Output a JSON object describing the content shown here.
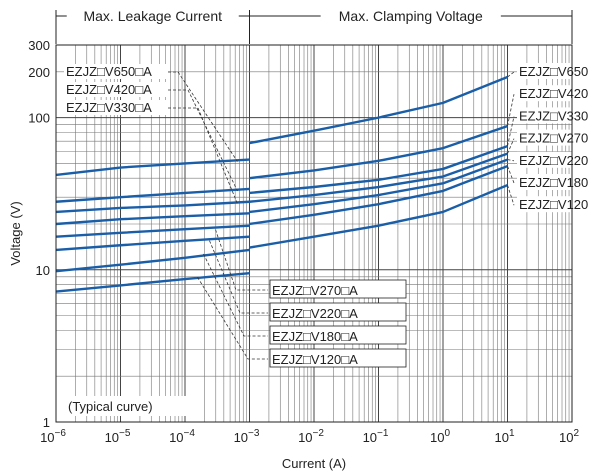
{
  "chart_data": {
    "type": "line",
    "title": "",
    "xlabel": "Current (A)",
    "ylabel": "Voltage (V)",
    "x_scale": "log",
    "y_scale": "log",
    "xlim": [
      1e-06,
      100
    ],
    "ylim": [
      1,
      300
    ],
    "grid": true,
    "x_tick_labels": [
      {
        "base": "10",
        "exp": "−6"
      },
      {
        "base": "10",
        "exp": "−5"
      },
      {
        "base": "10",
        "exp": "−4"
      },
      {
        "base": "10",
        "exp": "−3"
      },
      {
        "base": "10",
        "exp": "−2"
      },
      {
        "base": "10",
        "exp": "−1"
      },
      {
        "base": "10",
        "exp": "0"
      },
      {
        "base": "10",
        "exp": "1"
      },
      {
        "base": "10",
        "exp": "2"
      }
    ],
    "y_tick_labels": [
      "1",
      "10",
      "100",
      "200",
      "300"
    ],
    "regions": [
      {
        "label": "Max. Leakage Current",
        "from": 1e-06,
        "to": 0.001
      },
      {
        "label": "Max. Clamping Voltage",
        "from": 0.001,
        "to": 100
      }
    ],
    "annotation": "(Typical curve)",
    "series_line_color": "#1a5ea8",
    "series": [
      {
        "name": "EZJZ□V650□A",
        "leakage": {
          "x": [
            1e-06,
            1e-05,
            0.0001,
            0.001
          ],
          "y": [
            42,
            47,
            50,
            53
          ]
        },
        "clamping": {
          "x": [
            0.001,
            0.01,
            0.1,
            1,
            10
          ],
          "y": [
            68,
            82,
            100,
            125,
            185
          ]
        }
      },
      {
        "name": "EZJZ□V420□A",
        "leakage": {
          "x": [
            1e-06,
            1e-05,
            0.0001,
            0.001
          ],
          "y": [
            28,
            30,
            32,
            34
          ]
        },
        "clamping": {
          "x": [
            0.001,
            0.01,
            0.1,
            1,
            10
          ],
          "y": [
            40,
            45,
            52,
            63,
            88
          ]
        }
      },
      {
        "name": "EZJZ□V330□A",
        "leakage": {
          "x": [
            1e-06,
            1e-05,
            0.0001,
            0.001
          ],
          "y": [
            24,
            25.5,
            26.5,
            28
          ]
        },
        "clamping": {
          "x": [
            0.001,
            0.01,
            0.1,
            1,
            10
          ],
          "y": [
            32,
            35,
            39,
            46,
            65
          ]
        }
      },
      {
        "name": "EZJZ□V270□A",
        "leakage": {
          "x": [
            1e-06,
            1e-05,
            0.0001,
            0.001
          ],
          "y": [
            20,
            21.5,
            22.5,
            23.5
          ]
        },
        "clamping": {
          "x": [
            0.001,
            0.01,
            0.1,
            1,
            10
          ],
          "y": [
            28,
            31,
            35,
            41,
            58
          ]
        }
      },
      {
        "name": "EZJZ□V220□A",
        "leakage": {
          "x": [
            1e-06,
            1e-05,
            0.0001,
            0.001
          ],
          "y": [
            16.5,
            17.5,
            18.5,
            19.5
          ]
        },
        "clamping": {
          "x": [
            0.001,
            0.01,
            0.1,
            1,
            10
          ],
          "y": [
            24,
            27,
            31,
            37,
            53
          ]
        }
      },
      {
        "name": "EZJZ□V180□A",
        "leakage": {
          "x": [
            1e-06,
            1e-05,
            0.0001,
            0.001
          ],
          "y": [
            13.5,
            14.5,
            15.5,
            16.5
          ]
        },
        "clamping": {
          "x": [
            0.001,
            0.01,
            0.1,
            1,
            10
          ],
          "y": [
            20,
            23,
            27,
            33,
            48
          ]
        }
      },
      {
        "name": "EZJZ□V120□A",
        "leakage": {
          "x": [
            1e-06,
            1e-05,
            0.0001,
            0.001
          ],
          "y": [
            9.8,
            10.8,
            12,
            13.5
          ]
        },
        "clamping": {
          "x": [
            0.001,
            0.01,
            0.1,
            1,
            10
          ],
          "y": [
            14,
            16.5,
            19.5,
            24,
            36
          ]
        }
      },
      {
        "name": "",
        "leakage": {
          "x": [
            1e-06,
            1e-05,
            0.0001,
            0.001
          ],
          "y": [
            7.2,
            7.9,
            8.7,
            9.5
          ]
        },
        "clamping": null
      }
    ],
    "left_labels": [
      {
        "text": "EZJZ□V650□A",
        "series_index": 0
      },
      {
        "text": "EZJZ□V420□A",
        "series_index": 1
      },
      {
        "text": "EZJZ□V330□A",
        "series_index": 2
      }
    ],
    "right_labels": [
      {
        "text": "EZJZ□V650",
        "series_index": 0
      },
      {
        "text": "EZJZ□V420",
        "series_index": 1
      },
      {
        "text": "EZJZ□V330",
        "series_index": 2
      },
      {
        "text": "EZJZ□V270",
        "series_index": 3
      },
      {
        "text": "EZJZ□V220",
        "series_index": 4
      },
      {
        "text": "EZJZ□V180",
        "series_index": 5
      },
      {
        "text": "EZJZ□V120",
        "series_index": 6
      }
    ],
    "center_labels": [
      {
        "text": "EZJZ□V270□A",
        "series_index": 4
      },
      {
        "text": "EZJZ□V220□A",
        "series_index": 5
      },
      {
        "text": "EZJZ□V180□A",
        "series_index": 6
      },
      {
        "text": "EZJZ□V120□A",
        "series_index": 7
      }
    ]
  }
}
